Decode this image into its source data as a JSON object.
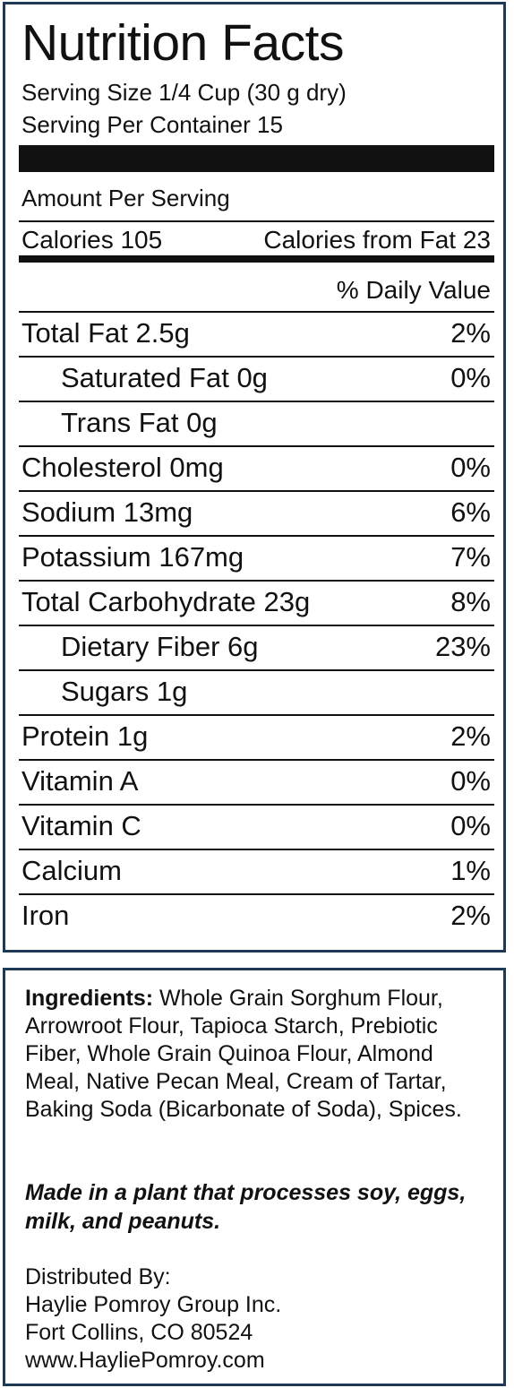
{
  "label": {
    "title": "Nutrition Facts",
    "serving_size": "Serving Size 1/4 Cup (30 g dry)",
    "servings_per_container": "Serving Per Container 15",
    "amount_per_serving": "Amount Per Serving",
    "calories": "Calories 105",
    "calories_from_fat": "Calories from Fat 23",
    "daily_value_header": "% Daily Value",
    "rows": [
      {
        "label": "Total Fat  2.5g",
        "pct": "2%",
        "indent": false
      },
      {
        "label": "Saturated Fat  0g",
        "pct": "0%",
        "indent": true
      },
      {
        "label": "Trans Fat  0g",
        "pct": "",
        "indent": true
      },
      {
        "label": "Cholesterol  0mg",
        "pct": "0%",
        "indent": false
      },
      {
        "label": "Sodium  13mg",
        "pct": "6%",
        "indent": false
      },
      {
        "label": "Potassium  167mg",
        "pct": "7%",
        "indent": false
      },
      {
        "label": "Total Carbohydrate  23g",
        "pct": "8%",
        "indent": false
      },
      {
        "label": "Dietary Fiber  6g",
        "pct": "23%",
        "indent": true
      },
      {
        "label": "Sugars  1g",
        "pct": "",
        "indent": true
      },
      {
        "label": "Protein  1g",
        "pct": "2%",
        "indent": false
      },
      {
        "label": "Vitamin A",
        "pct": "0%",
        "indent": false
      },
      {
        "label": "Vitamin C",
        "pct": "0%",
        "indent": false
      },
      {
        "label": "Calcium",
        "pct": "1%",
        "indent": false
      },
      {
        "label": "Iron",
        "pct": "2%",
        "indent": false
      }
    ]
  },
  "info": {
    "ingredients_heading": "Ingredients:",
    "ingredients_text": " Whole Grain Sorghum Flour, Arrowroot Flour, Tapioca Starch, Prebiotic Fiber, Whole Grain Quinoa Flour, Almond Meal, Native Pecan Meal, Cream of Tartar, Baking Soda (Bicarbonate of Soda), Spices.",
    "allergen_warning": "Made in a plant that processes soy, eggs, milk, and peanuts.",
    "distributor_lines": [
      "Distributed By:",
      "Haylie Pomroy Group Inc.",
      "Fort Collins, CO 80524",
      "www.HayliePomroy.com"
    ]
  },
  "colors": {
    "border": "#1f3a56",
    "text": "#111111"
  }
}
